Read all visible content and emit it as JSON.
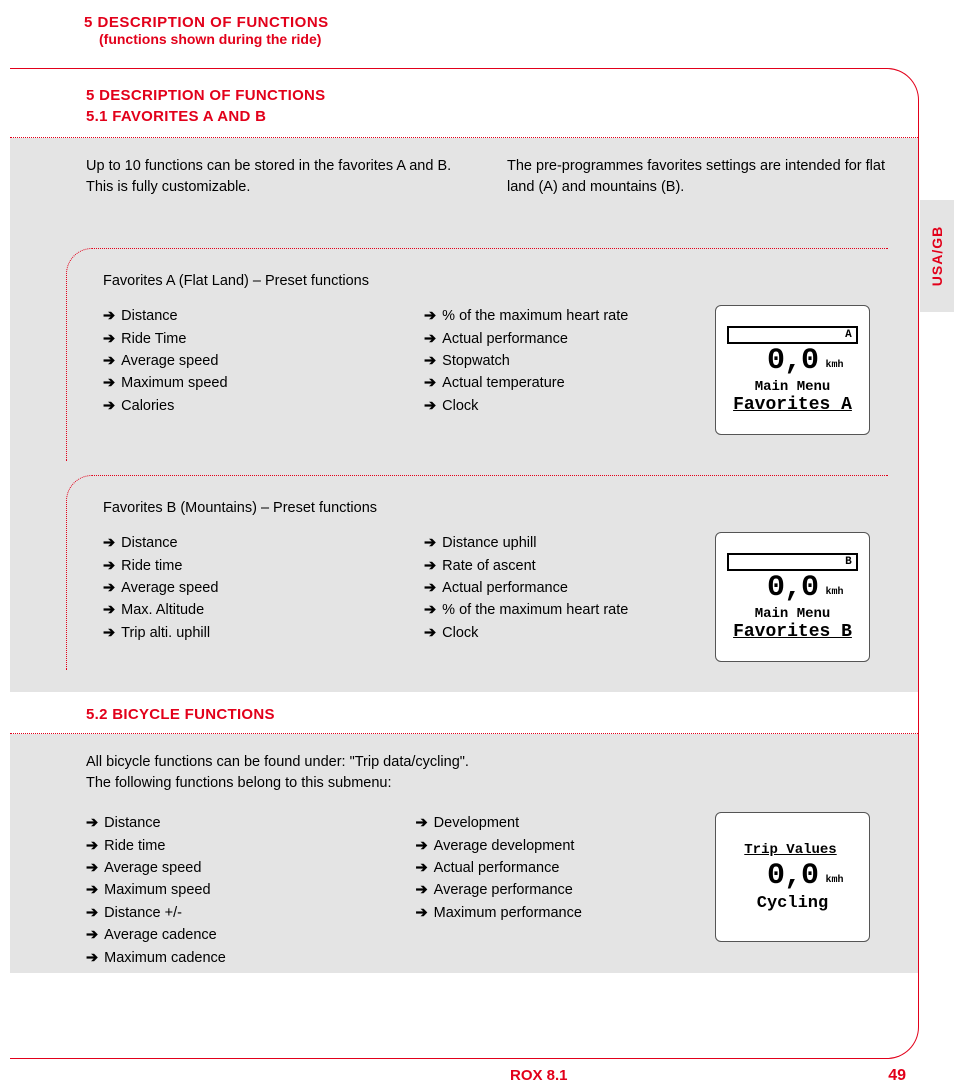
{
  "header": {
    "title": "5 DESCRIPTION OF FUNCTIONS",
    "subtitle": "(functions shown during the ride)"
  },
  "section5": {
    "title": "5 DESCRIPTION OF FUNCTIONS",
    "subtitle": "5.1 FAVORITES A AND B",
    "intro_left": "Up to 10 functions can be stored in the favorites A and B. This is fully customizable.",
    "intro_right": "The pre-programmes favorites settings are intended for flat land (A) and mountains (B)."
  },
  "favA": {
    "title": "Favorites A (Flat Land)  –  Preset functions",
    "col1": [
      "Distance",
      "Ride Time",
      "Average speed",
      "Maximum speed",
      "Calories"
    ],
    "col2": [
      "% of the maximum heart rate",
      "Actual performance",
      "Stopwatch",
      "Actual temperature",
      "Clock"
    ],
    "device": {
      "topbar": "A",
      "value": "0,0",
      "unit": "kmh",
      "line1": "Main Menu",
      "line2": "Favorites A"
    }
  },
  "favB": {
    "title": "Favorites B (Mountains)  –  Preset functions",
    "col1": [
      "Distance",
      "Ride time",
      "Average speed",
      "Max. Altitude",
      "Trip alti. uphill"
    ],
    "col2": [
      "Distance uphill",
      "Rate of ascent",
      "Actual performance",
      "% of the maximum heart rate",
      "Clock"
    ],
    "device": {
      "topbar": "B",
      "value": "0,0",
      "unit": "kmh",
      "line1": "Main Menu",
      "line2": "Favorites B"
    }
  },
  "section52": {
    "title": "5.2 BICYCLE FUNCTIONS",
    "intro": "All bicycle functions can be found under: \"Trip data/cycling\".\nThe following functions belong to this submenu:",
    "col1": [
      "Distance",
      "Ride time",
      "Average speed",
      "Maximum speed",
      "Distance +/-",
      "Average cadence",
      "Maximum cadence"
    ],
    "col2": [
      "Development",
      "Average development",
      "Actual performance",
      "Average performance",
      "Maximum performance"
    ],
    "device": {
      "topbar": "",
      "toplabel": "Trip Values",
      "value": "0,0",
      "unit": "kmh",
      "line1": "Cycling",
      "line2": ""
    }
  },
  "sideTab": "USA/GB",
  "footer": {
    "product": "ROX 8.1",
    "page": "49"
  },
  "style": {
    "accent": "#e2001a",
    "grey": "#e4e4e4",
    "arrow": "➔"
  }
}
